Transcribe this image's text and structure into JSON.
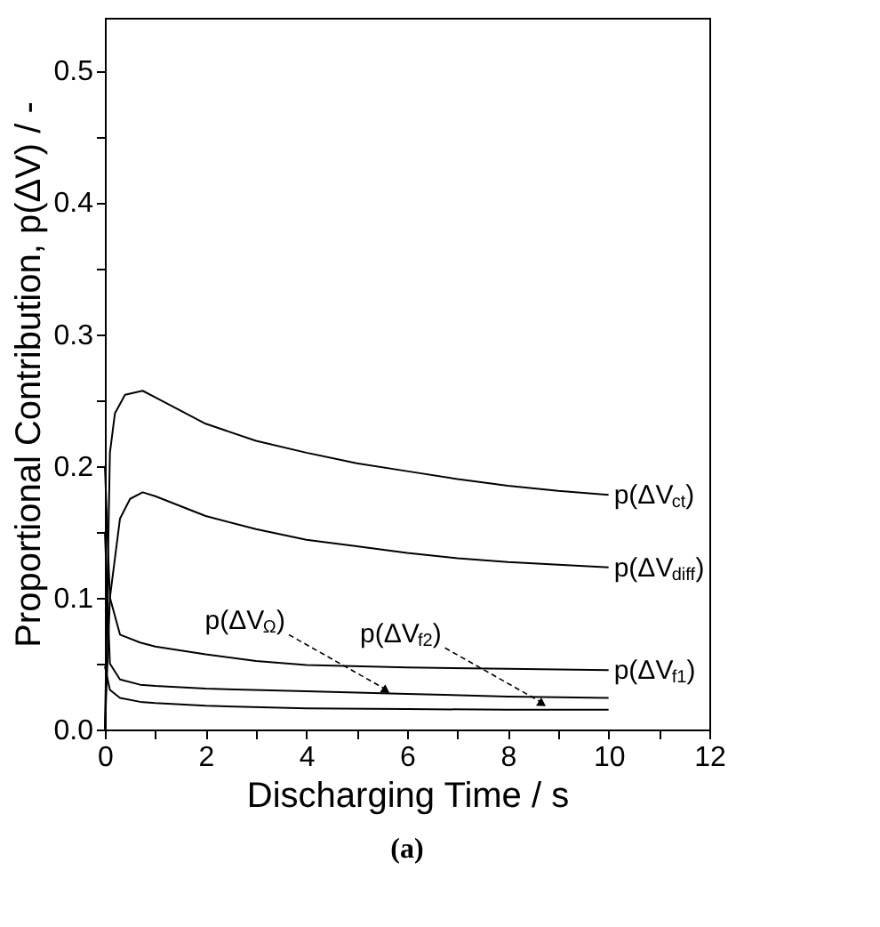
{
  "chart_data": {
    "type": "line",
    "xlabel": "Discharging Time / s",
    "ylabel": "Proportional Contribution, p(ΔV) / -",
    "xlim": [
      0,
      12
    ],
    "ylim": [
      0,
      0.54
    ],
    "xticks": [
      0,
      {
        "value": 1,
        "label": null
      },
      2,
      {
        "value": 3,
        "label": null
      },
      4,
      {
        "value": 5,
        "label": null
      },
      6,
      {
        "value": 7,
        "label": null
      },
      8,
      {
        "value": 9,
        "label": null
      },
      10,
      {
        "value": 11,
        "label": null
      },
      12
    ],
    "yticks": [
      "0.0",
      {
        "value": 0.05,
        "label": null
      },
      0.1,
      {
        "value": 0.15,
        "label": null
      },
      0.2,
      {
        "value": 0.25,
        "label": null
      },
      0.3,
      {
        "value": 0.35,
        "label": null
      },
      0.4,
      {
        "value": 0.45,
        "label": null
      },
      0.5
    ],
    "grid": false,
    "marker": "none",
    "line_style": "solid",
    "series": [
      {
        "name": "p(ΔV$_{ct}$)",
        "color": "#000000",
        "x": [
          0,
          0.1,
          0.2,
          0.4,
          0.75,
          1,
          2,
          3,
          4,
          5,
          6,
          7,
          8,
          9,
          10
        ],
        "values": [
          0,
          0.21,
          0.24,
          0.254,
          0.257,
          0.252,
          0.232,
          0.219,
          0.21,
          0.202,
          0.196,
          0.19,
          0.185,
          0.181,
          0.178
        ]
      },
      {
        "name": "p(ΔV$_{diff}$)",
        "color": "#000000",
        "x": [
          0,
          0.1,
          0.3,
          0.5,
          0.75,
          1,
          2,
          3,
          4,
          5,
          6,
          7,
          8,
          9,
          10
        ],
        "values": [
          0,
          0.1,
          0.16,
          0.175,
          0.18,
          0.177,
          0.162,
          0.152,
          0.144,
          0.139,
          0.134,
          0.13,
          0.127,
          0.125,
          0.123
        ]
      },
      {
        "name": "p(ΔV$_{f1}$)",
        "color": "#000000",
        "x": [
          0,
          0.1,
          0.3,
          0.7,
          1,
          2,
          3,
          4,
          6,
          8,
          10
        ],
        "values": [
          0.2,
          0.1,
          0.072,
          0.066,
          0.063,
          0.057,
          0.052,
          0.049,
          0.047,
          0.046,
          0.045
        ]
      },
      {
        "color": "#000000",
        "x": [
          0,
          0.1,
          0.3,
          0.7,
          1,
          2,
          4,
          6,
          8,
          10
        ],
        "values": [
          0.15,
          0.05,
          0.038,
          0.034,
          0.033,
          0.031,
          0.029,
          0.027,
          0.025,
          0.024
        ]
      },
      {
        "color": "#000000",
        "x": [
          0,
          0.1,
          0.3,
          0.7,
          1,
          2,
          4,
          6,
          8,
          10
        ],
        "values": [
          0.048,
          0.03,
          0.024,
          0.021,
          0.02,
          0.018,
          0.016,
          0.0155,
          0.015,
          0.015
        ]
      }
    ],
    "annotations": [
      {
        "text": "p(ΔV$_{Ω}$)",
        "x": 5.7,
        "y": 0.026
      },
      {
        "text": "p(ΔV$_{f2}$)",
        "x": 8.8,
        "y": 0.016
      },
      "(a)"
    ]
  }
}
